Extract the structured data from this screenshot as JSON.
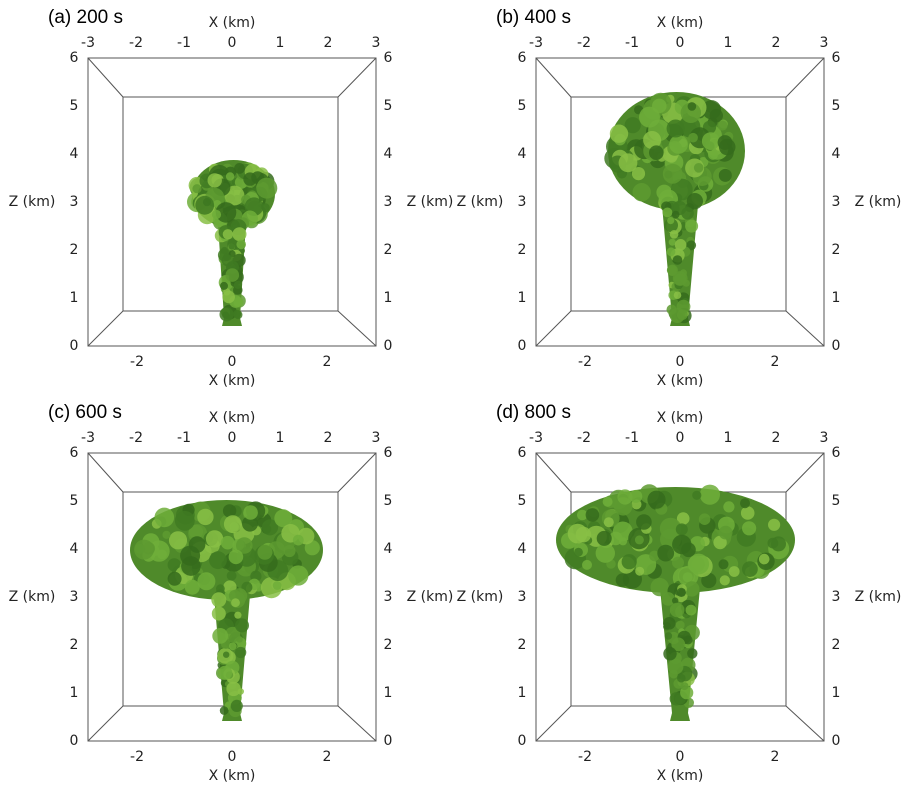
{
  "panels": [
    {
      "title": "(a) 200 s",
      "x_label": "X (km)",
      "z_label": "Z (km)",
      "top_ticks": [
        -3,
        -2,
        -1,
        0,
        1,
        2,
        3
      ],
      "bottom_ticks": [
        -2,
        0,
        2
      ],
      "z_ticks": [
        0,
        1,
        2,
        3,
        4,
        5,
        6
      ]
    },
    {
      "title": "(b) 400 s",
      "x_label": "X (km)",
      "z_label": "Z (km)",
      "top_ticks": [
        -3,
        -2,
        -1,
        0,
        1,
        2,
        3
      ],
      "bottom_ticks": [
        -2,
        0,
        2
      ],
      "z_ticks": [
        0,
        1,
        2,
        3,
        4,
        5,
        6
      ]
    },
    {
      "title": "(c) 600 s",
      "x_label": "X (km)",
      "z_label": "Z (km)",
      "top_ticks": [
        -3,
        -2,
        -1,
        0,
        1,
        2,
        3
      ],
      "bottom_ticks": [
        -2,
        0,
        2
      ],
      "z_ticks": [
        0,
        1,
        2,
        3,
        4,
        5,
        6
      ]
    },
    {
      "title": "(d) 800 s",
      "x_label": "X (km)",
      "z_label": "Z (km)",
      "top_ticks": [
        -3,
        -2,
        -1,
        0,
        1,
        2,
        3
      ],
      "bottom_ticks": [
        -2,
        0,
        2
      ],
      "z_ticks": [
        0,
        1,
        2,
        3,
        4,
        5,
        6
      ]
    }
  ]
}
